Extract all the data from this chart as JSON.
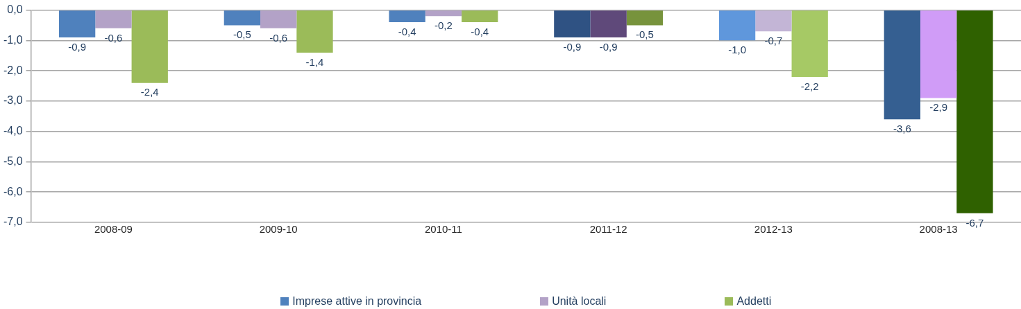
{
  "chart_data": {
    "type": "bar",
    "categories": [
      "2008-09",
      "2009-10",
      "2010-11",
      "2011-12",
      "2012-13",
      "2008-13"
    ],
    "series": [
      {
        "name": "Imprese attive in provincia",
        "color": "#4f81bd",
        "colors": [
          "#4f81bd",
          "#4f81bd",
          "#4f81bd",
          "#2f5283",
          "#5f97dc",
          "#355f91"
        ],
        "values": [
          -0.9,
          -0.5,
          -0.4,
          -0.9,
          -1.0,
          -3.6
        ],
        "value_labels": [
          "-0,9",
          "-0,5",
          "-0,4",
          "-0,9",
          "-1,0",
          "-3,6"
        ]
      },
      {
        "name": "Unità locali",
        "color": "#b3a2c7",
        "colors": [
          "#b3a2c7",
          "#b3a2c7",
          "#b3a2c7",
          "#5f497a",
          "#c3b5d6",
          "#d09cf7"
        ],
        "values": [
          -0.6,
          -0.6,
          -0.2,
          -0.9,
          -0.7,
          -2.9
        ],
        "value_labels": [
          "-0,6",
          "-0,6",
          "-0,2",
          "-0,9",
          "-0,7",
          "-2,9"
        ]
      },
      {
        "name": "Addetti",
        "color": "#9bbb59",
        "colors": [
          "#9bbb59",
          "#9bbb59",
          "#9bbb59",
          "#77933c",
          "#a6c965",
          "#2f6100"
        ],
        "values": [
          -2.4,
          -1.4,
          -0.4,
          -0.5,
          -2.2,
          -6.7
        ],
        "value_labels": [
          "-2,4",
          "-1,4",
          "-0,4",
          "-0,5",
          "-2,2",
          "-6,7"
        ]
      }
    ],
    "ylim": [
      -7,
      0
    ],
    "yticks": [
      {
        "value": -7,
        "label": "-7,0"
      },
      {
        "value": -6,
        "label": "-6,0"
      },
      {
        "value": -5,
        "label": "-5,0"
      },
      {
        "value": -4,
        "label": "-4,0"
      },
      {
        "value": -3,
        "label": "-3,0"
      },
      {
        "value": -2,
        "label": "-2,0"
      },
      {
        "value": -1,
        "label": "-1,0"
      },
      {
        "value": 0,
        "label": "0,0"
      }
    ],
    "grid": "y",
    "legend": "bottom"
  }
}
